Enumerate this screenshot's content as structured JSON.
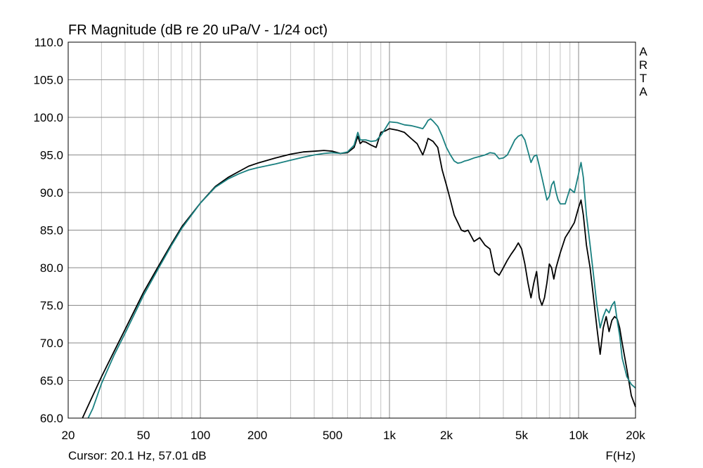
{
  "chart_data": {
    "type": "line",
    "title": "FR Magnitude (dB re 20 uPa/V - 1/24 oct)",
    "watermark": "ARTA",
    "xlabel": "F(Hz)",
    "ylabel": "",
    "x_scale": "log",
    "xlim": [
      20,
      20000
    ],
    "ylim": [
      60,
      110
    ],
    "grid": true,
    "x_tick_values": [
      20,
      50,
      100,
      200,
      500,
      1000,
      2000,
      5000,
      10000,
      20000
    ],
    "x_tick_labels": [
      "20",
      "50",
      "100",
      "200",
      "500",
      "1k",
      "2k",
      "5k",
      "10k",
      "20k"
    ],
    "y_tick_values": [
      60,
      65,
      70,
      75,
      80,
      85,
      90,
      95,
      100,
      105,
      110
    ],
    "y_tick_labels": [
      "60.0",
      "65.0",
      "70.0",
      "75.0",
      "80.0",
      "85.0",
      "90.0",
      "95.0",
      "100.0",
      "105.0",
      "110.0"
    ],
    "cursor_text": "Cursor: 20.1 Hz, 57.01 dB",
    "series": [
      {
        "color": "#000000",
        "x": [
          23.8,
          25,
          30,
          35,
          40,
          50,
          60,
          70,
          80,
          100,
          120,
          140,
          160,
          180,
          200,
          250,
          300,
          350,
          400,
          450,
          500,
          550,
          600,
          650,
          680,
          700,
          720,
          750,
          800,
          850,
          900,
          950,
          1000,
          1100,
          1200,
          1300,
          1400,
          1500,
          1550,
          1600,
          1650,
          1700,
          1800,
          1900,
          2000,
          2100,
          2200,
          2300,
          2400,
          2500,
          2600,
          2800,
          3000,
          3200,
          3400,
          3600,
          3800,
          4000,
          4200,
          4400,
          4600,
          4800,
          5000,
          5200,
          5400,
          5600,
          5800,
          6000,
          6200,
          6400,
          6600,
          6800,
          7000,
          7200,
          7400,
          7600,
          7800,
          8000,
          8500,
          9000,
          9500,
          10000,
          10300,
          10600,
          11000,
          11500,
          12000,
          12500,
          13000,
          13500,
          14000,
          14500,
          15000,
          15500,
          16000,
          16500,
          17000,
          18000,
          19000,
          20000
        ],
        "y": [
          60.0,
          61.2,
          65.5,
          68.9,
          71.8,
          76.7,
          80.2,
          83.1,
          85.5,
          88.6,
          90.8,
          92.0,
          92.8,
          93.5,
          93.9,
          94.6,
          95.1,
          95.4,
          95.5,
          95.6,
          95.5,
          95.2,
          95.3,
          96.0,
          97.5,
          96.5,
          96.8,
          96.7,
          96.3,
          96.0,
          98.0,
          98.2,
          98.5,
          98.3,
          98.0,
          97.2,
          96.5,
          95.0,
          96.0,
          97.2,
          97.0,
          96.8,
          96.0,
          93.0,
          91.0,
          89.0,
          87.0,
          86.0,
          85.0,
          84.8,
          85.0,
          83.5,
          84.0,
          83.0,
          82.5,
          79.5,
          79.0,
          80.0,
          81.0,
          81.8,
          82.5,
          83.3,
          82.5,
          80.5,
          78.0,
          76.0,
          78.0,
          79.5,
          76.0,
          75.0,
          76.0,
          78.0,
          80.5,
          80.0,
          78.5,
          80.0,
          81.0,
          82.0,
          84.0,
          85.0,
          86.0,
          88.0,
          89.0,
          87.0,
          83.0,
          80.0,
          76.0,
          72.0,
          68.5,
          72.0,
          73.5,
          71.5,
          73.0,
          73.5,
          73.2,
          72.0,
          70.0,
          66.5,
          63.0,
          61.5
        ]
      },
      {
        "color": "#1a8080",
        "x": [
          25.5,
          27,
          30,
          35,
          40,
          50,
          60,
          70,
          80,
          100,
          120,
          140,
          160,
          180,
          200,
          250,
          300,
          350,
          400,
          450,
          500,
          550,
          600,
          650,
          680,
          700,
          720,
          750,
          800,
          850,
          900,
          950,
          1000,
          1100,
          1200,
          1300,
          1400,
          1500,
          1550,
          1600,
          1650,
          1700,
          1800,
          1900,
          2000,
          2100,
          2200,
          2300,
          2400,
          2500,
          2600,
          2800,
          3000,
          3200,
          3400,
          3600,
          3800,
          4000,
          4200,
          4400,
          4600,
          4800,
          5000,
          5200,
          5400,
          5600,
          5800,
          6000,
          6200,
          6400,
          6600,
          6800,
          7000,
          7200,
          7400,
          7600,
          7800,
          8000,
          8500,
          9000,
          9500,
          10000,
          10300,
          10600,
          11000,
          11500,
          12000,
          12500,
          13000,
          13500,
          14000,
          14500,
          15000,
          15500,
          16000,
          16500,
          17000,
          18000,
          19000,
          20000
        ],
        "y": [
          60.0,
          61.3,
          64.6,
          68.4,
          71.3,
          76.3,
          79.9,
          82.9,
          85.3,
          88.6,
          90.7,
          91.8,
          92.5,
          93.0,
          93.3,
          93.8,
          94.3,
          94.7,
          95.0,
          95.2,
          95.3,
          95.2,
          95.4,
          96.3,
          98.0,
          97.0,
          97.0,
          97.0,
          96.8,
          96.9,
          97.6,
          98.5,
          99.4,
          99.3,
          99.0,
          98.9,
          98.7,
          98.5,
          99.0,
          99.6,
          99.8,
          99.5,
          98.8,
          97.5,
          96.0,
          95.0,
          94.2,
          93.9,
          94.0,
          94.2,
          94.3,
          94.6,
          94.8,
          95.0,
          95.3,
          95.2,
          94.5,
          94.6,
          95.0,
          96.0,
          97.0,
          97.5,
          97.7,
          97.0,
          95.5,
          94.0,
          94.8,
          95.0,
          93.5,
          92.0,
          90.5,
          89.0,
          89.5,
          91.0,
          91.5,
          90.0,
          89.0,
          88.5,
          88.5,
          90.5,
          90.0,
          92.5,
          94.0,
          92.0,
          87.0,
          83.0,
          79.0,
          75.0,
          72.0,
          73.5,
          74.5,
          74.0,
          75.0,
          75.5,
          73.0,
          71.0,
          68.0,
          65.5,
          64.5,
          64.0
        ]
      }
    ]
  }
}
